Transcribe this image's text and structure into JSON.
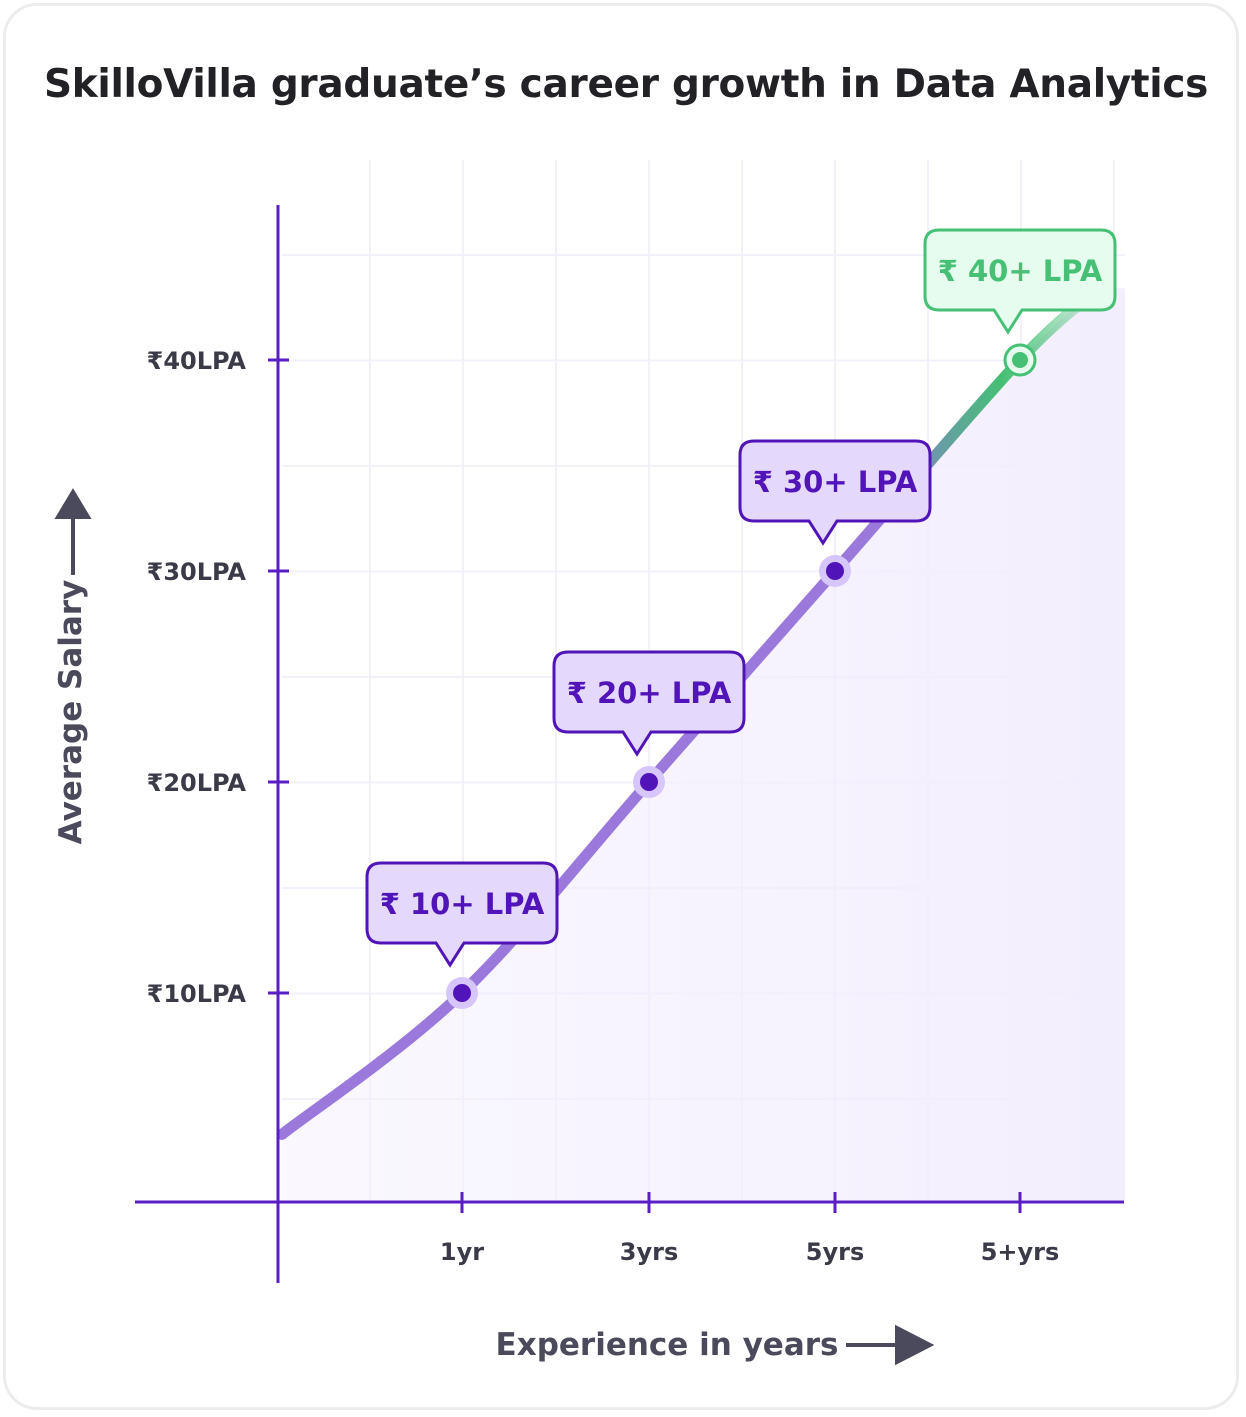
{
  "title": "SkilloVilla graduate’s career growth in Data Analytics",
  "chart_data": {
    "type": "line",
    "title": "SkilloVilla graduate’s career growth in Data Analytics",
    "xlabel": "Experience in years",
    "ylabel": "Average Salary",
    "categories": [
      "1yr",
      "3yrs",
      "5yrs",
      "5+yrs"
    ],
    "y_ticks": [
      10,
      20,
      30,
      40
    ],
    "y_tick_labels": [
      "₹10LPA",
      "₹20LPA",
      "₹30LPA",
      "₹40LPA"
    ],
    "values": [
      10,
      20,
      30,
      40
    ],
    "annotations": [
      "₹ 10+ LPA",
      "₹ 20+ LPA",
      "₹ 30+ LPA",
      "₹ 40+ LPA"
    ],
    "ylim": [
      0,
      45
    ],
    "grid": true,
    "colors": {
      "line": "#9b78dc",
      "point": "#5014b8",
      "highlight": "#45c074",
      "axis": "#5a1fc4",
      "area": "#f3eefd"
    }
  }
}
